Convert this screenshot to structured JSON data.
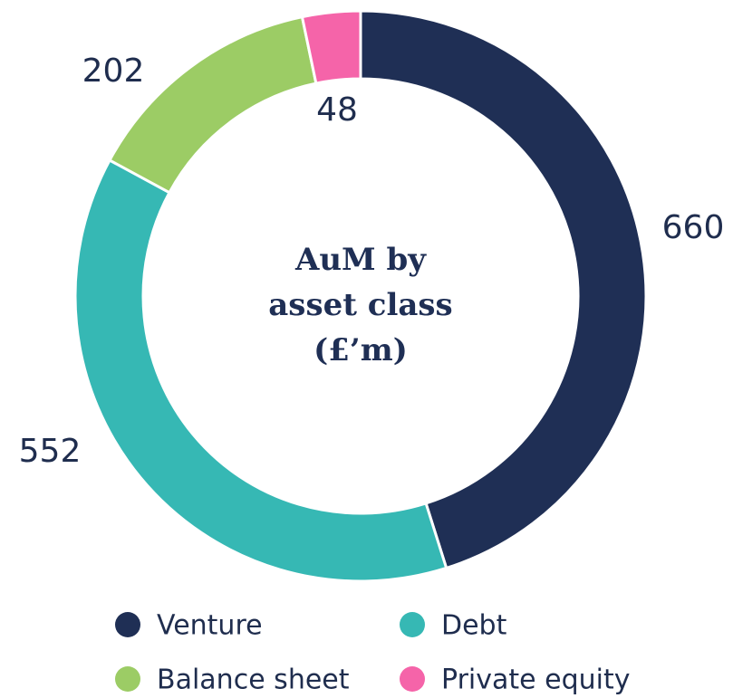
{
  "chart_data": {
    "type": "donut",
    "title": "AuM by asset class (£’m)",
    "categories": [
      "Venture",
      "Debt",
      "Balance sheet",
      "Private equity"
    ],
    "values": [
      660,
      552,
      202,
      48
    ],
    "colors": [
      "#1f2f55",
      "#36b8b4",
      "#9ccc65",
      "#f564a9"
    ],
    "legend": "bottom"
  }
}
